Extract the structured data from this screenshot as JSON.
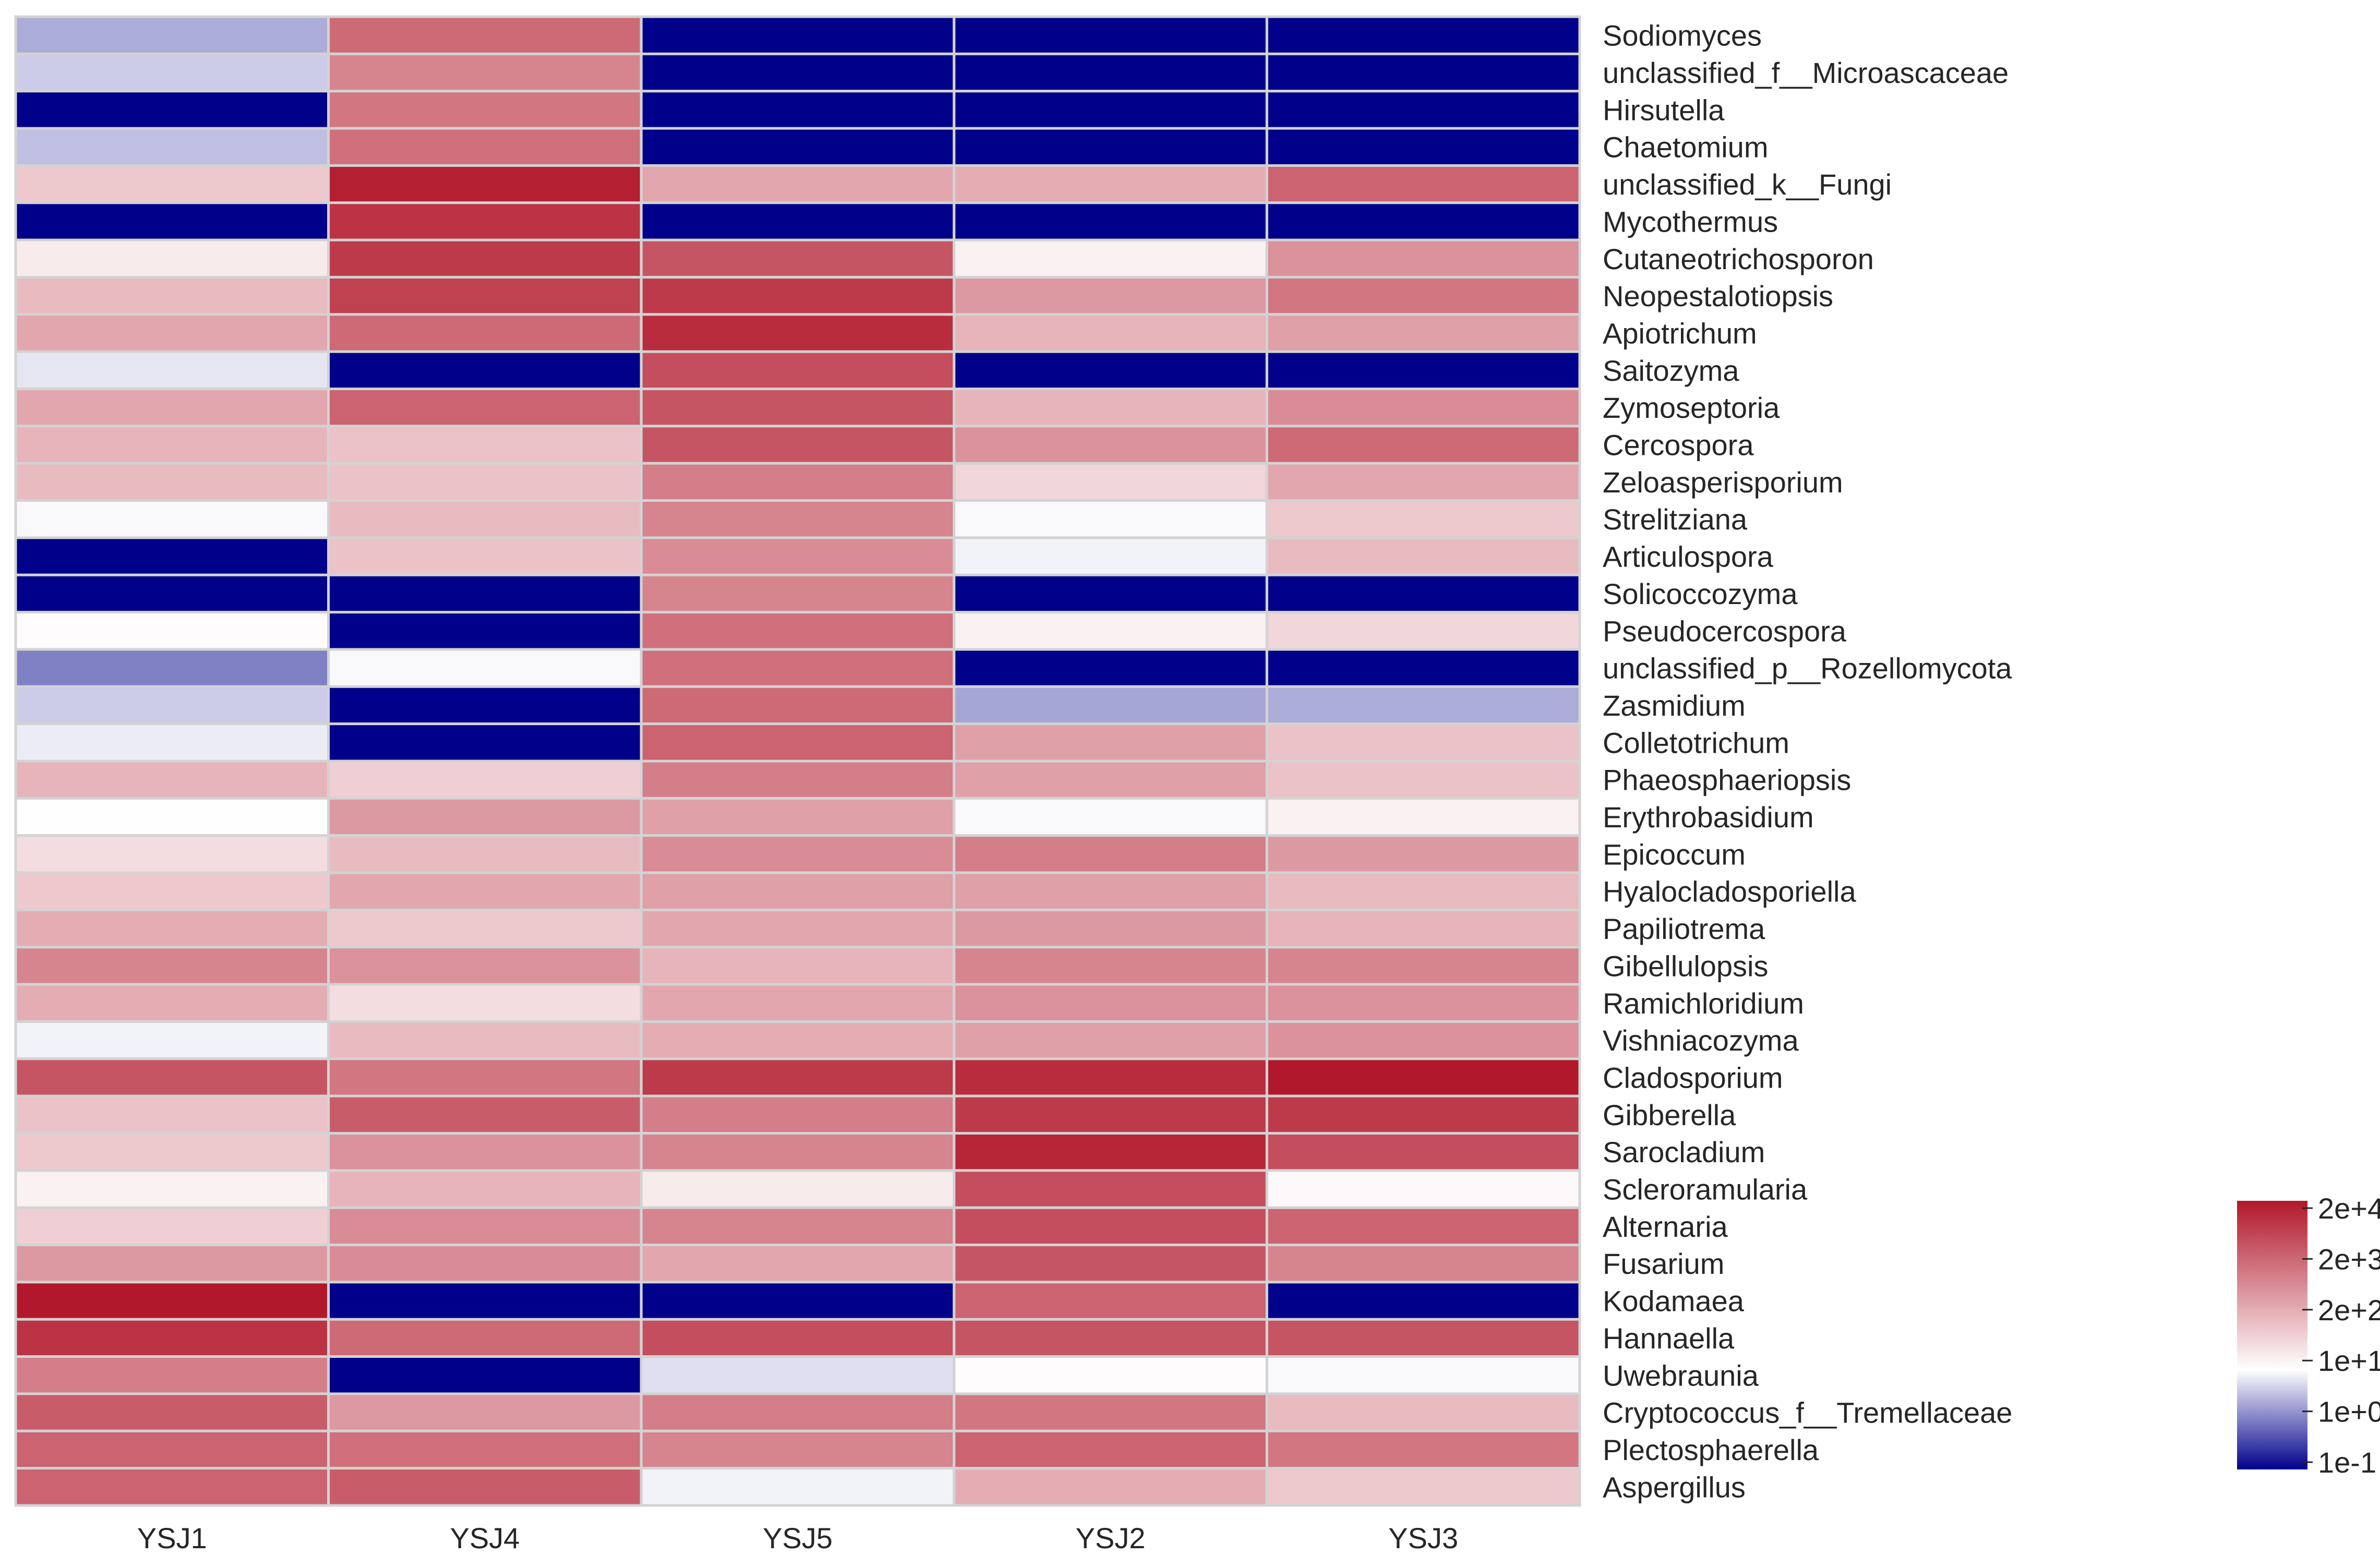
{
  "chart_data": {
    "type": "heatmap",
    "title": "",
    "columns": [
      "YSJ1",
      "YSJ4",
      "YSJ5",
      "YSJ2",
      "YSJ3"
    ],
    "rows": [
      "Sodiomyces",
      "unclassified_f__Microascaceae",
      "Hirsutella",
      "Chaetomium",
      "unclassified_k__Fungi",
      "Mycothermus",
      "Cutaneotrichosporon",
      "Neopestalotiopsis",
      "Apiotrichum",
      "Saitozyma",
      "Zymoseptoria",
      "Cercospora",
      "Zeloasperisporium",
      "Strelitziana",
      "Articulospora",
      "Solicoccozyma",
      "Pseudocercospora",
      "unclassified_p__Rozellomycota",
      "Zasmidium",
      "Colletotrichum",
      "Phaeosphaeriopsis",
      "Erythrobasidium",
      "Epicoccum",
      "Hyalocladosporiella",
      "Papiliotrema",
      "Gibellulopsis",
      "Ramichloridium",
      "Vishniacozyma",
      "Cladosporium",
      "Gibberella",
      "Sarocladium",
      "Scleroramularia",
      "Alternaria",
      "Fusarium",
      "Kodamaea",
      "Hannaella",
      "Uwebraunia",
      "Cryptococcus_f__Tremellaceae",
      "Plectosphaerella",
      "Aspergillus"
    ],
    "values_log10": [
      [
        0.35,
        3.2,
        -1.0,
        -1.0,
        -1.0
      ],
      [
        0.6,
        2.8,
        -1.0,
        -1.0,
        -1.0
      ],
      [
        -1.0,
        3.0,
        -1.0,
        -1.0,
        -1.0
      ],
      [
        0.5,
        3.1,
        -1.0,
        -1.0,
        -1.0
      ],
      [
        1.8,
        4.3,
        2.3,
        2.2,
        3.3
      ],
      [
        -1.0,
        4.0,
        -1.0,
        -1.0,
        -1.0
      ],
      [
        1.3,
        3.9,
        3.5,
        1.2,
        2.6
      ],
      [
        2.0,
        3.8,
        3.9,
        2.5,
        3.0
      ],
      [
        2.3,
        3.2,
        4.1,
        2.1,
        2.4
      ],
      [
        0.8,
        -1.0,
        3.6,
        -1.0,
        -1.0
      ],
      [
        2.3,
        3.3,
        3.5,
        2.1,
        2.7
      ],
      [
        2.1,
        1.9,
        3.5,
        2.6,
        3.2
      ],
      [
        2.0,
        1.9,
        2.9,
        1.6,
        2.3
      ],
      [
        0.95,
        2.0,
        2.8,
        0.95,
        1.8
      ],
      [
        -1.0,
        1.9,
        2.7,
        0.9,
        2.0
      ],
      [
        -1.0,
        -1.0,
        2.8,
        -1.0,
        -1.0
      ],
      [
        1.05,
        -1.0,
        3.1,
        1.2,
        1.6
      ],
      [
        0.0,
        0.95,
        3.1,
        -1.0,
        -1.0
      ],
      [
        0.6,
        -1.0,
        3.2,
        0.3,
        0.35
      ],
      [
        0.85,
        -1.0,
        3.3,
        2.4,
        1.9
      ],
      [
        2.1,
        1.7,
        2.9,
        2.4,
        1.9
      ],
      [
        1.02,
        2.5,
        2.4,
        0.95,
        1.2
      ],
      [
        1.5,
        2.0,
        2.7,
        2.9,
        2.5
      ],
      [
        1.8,
        2.3,
        2.4,
        2.4,
        2.0
      ],
      [
        2.2,
        1.8,
        2.3,
        2.5,
        2.1
      ],
      [
        2.8,
        2.6,
        2.1,
        2.8,
        2.8
      ],
      [
        2.2,
        1.5,
        2.3,
        2.6,
        2.6
      ],
      [
        0.9,
        2.0,
        2.2,
        2.4,
        2.6
      ],
      [
        3.5,
        3.0,
        3.9,
        4.1,
        4.4
      ],
      [
        1.9,
        3.4,
        2.9,
        3.9,
        3.9
      ],
      [
        1.8,
        2.6,
        2.8,
        4.2,
        3.6
      ],
      [
        1.2,
        2.1,
        1.3,
        3.6,
        1.1
      ],
      [
        1.7,
        2.7,
        2.8,
        3.6,
        3.3
      ],
      [
        2.5,
        2.7,
        2.3,
        3.5,
        2.8
      ],
      [
        4.4,
        -1.0,
        -1.0,
        3.3,
        -1.0
      ],
      [
        4.0,
        3.2,
        3.6,
        3.5,
        3.5
      ],
      [
        2.9,
        -1.0,
        0.75,
        1.05,
        0.95
      ],
      [
        3.4,
        2.5,
        2.9,
        3.0,
        2.0
      ],
      [
        3.3,
        3.1,
        2.8,
        3.3,
        3.0
      ],
      [
        3.3,
        3.4,
        0.9,
        2.2,
        1.8
      ]
    ],
    "color_scale": {
      "label_ticks": [
        "2e+4",
        "2e+3",
        "2e+2",
        "1e+1",
        "1e+0",
        "1e-1"
      ],
      "range_log10": [
        -1.0,
        4.4
      ],
      "low_color": "#00008b",
      "mid_color": "#ffffff",
      "high_color": "#b2182b"
    },
    "legend_position": "bottom-right",
    "cell_border_color": "#d3d3d3"
  }
}
